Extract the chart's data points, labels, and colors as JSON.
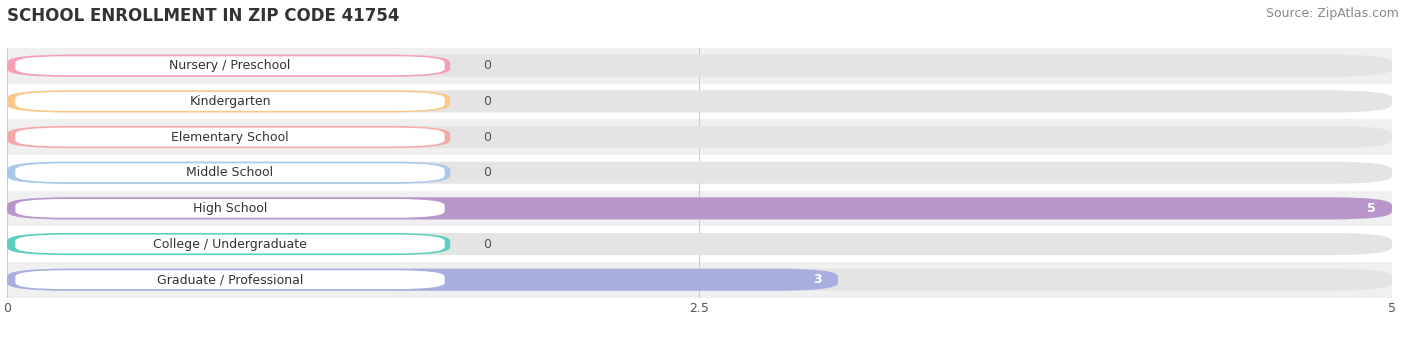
{
  "title": "SCHOOL ENROLLMENT IN ZIP CODE 41754",
  "source": "Source: ZipAtlas.com",
  "categories": [
    "Nursery / Preschool",
    "Kindergarten",
    "Elementary School",
    "Middle School",
    "High School",
    "College / Undergraduate",
    "Graduate / Professional"
  ],
  "values": [
    0,
    0,
    0,
    0,
    5,
    0,
    3
  ],
  "bar_colors": [
    "#f5a0b5",
    "#f7c98a",
    "#f5aaaa",
    "#a8c8ea",
    "#b896cc",
    "#5ecfbf",
    "#a8aee0"
  ],
  "row_bg_colors": [
    "#f0f0f0",
    "#ffffff",
    "#f0f0f0",
    "#ffffff",
    "#f0f0f0",
    "#ffffff",
    "#f0f0f0"
  ],
  "xlim": [
    0,
    5
  ],
  "xticks": [
    0,
    2.5,
    5
  ],
  "background_color": "#ffffff",
  "title_fontsize": 12,
  "source_fontsize": 9,
  "label_fontsize": 9,
  "value_fontsize": 9
}
